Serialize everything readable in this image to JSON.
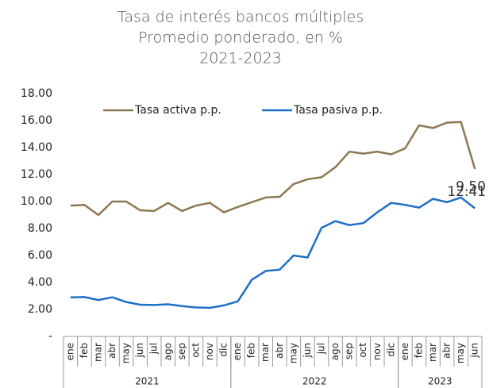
{
  "chart_data": {
    "type": "line",
    "title": [
      "Tasa de interés bancos múltiples",
      "Promedio ponderado, en %",
      "2021-2023"
    ],
    "groups": [
      {
        "name": "2021",
        "categories": [
          "ene",
          "feb",
          "mar",
          "abr",
          "may",
          "jun",
          "jul",
          "ago",
          "sep",
          "oct",
          "nov",
          "dic"
        ]
      },
      {
        "name": "2022",
        "categories": [
          "ene",
          "feb",
          "mar",
          "abr",
          "may",
          "jun",
          "jul",
          "ago",
          "sep",
          "oct",
          "nov",
          "dic"
        ]
      },
      {
        "name": "2023",
        "categories": [
          "ene",
          "feb",
          "mar",
          "abr",
          "may",
          "jun"
        ]
      }
    ],
    "series": [
      {
        "name": "Tasa activa p.p.",
        "color": "#8c7853",
        "values": [
          9.7,
          9.75,
          9.0,
          10.0,
          10.0,
          9.35,
          9.3,
          9.9,
          9.3,
          9.7,
          9.9,
          9.2,
          9.6,
          9.95,
          10.3,
          10.35,
          11.3,
          11.65,
          11.8,
          12.55,
          13.7,
          13.55,
          13.7,
          13.5,
          13.95,
          15.65,
          15.45,
          15.85,
          15.9,
          12.41
        ],
        "value_labels": [
          null,
          null,
          null,
          null,
          null,
          null,
          null,
          null,
          null,
          null,
          null,
          null,
          null,
          null,
          null,
          null,
          null,
          null,
          null,
          null,
          null,
          null,
          null,
          null,
          null,
          null,
          null,
          null,
          null,
          "12.41"
        ]
      },
      {
        "name": "Tasa pasiva p.p.",
        "color": "#1f6fc5",
        "values": [
          2.9,
          2.92,
          2.7,
          2.9,
          2.55,
          2.35,
          2.33,
          2.38,
          2.25,
          2.15,
          2.12,
          2.3,
          2.6,
          4.2,
          4.85,
          4.95,
          6.0,
          5.85,
          8.05,
          8.55,
          8.25,
          8.4,
          9.2,
          9.9,
          9.75,
          9.55,
          10.2,
          9.95,
          10.3,
          9.5
        ],
        "value_labels": [
          null,
          null,
          null,
          null,
          null,
          null,
          null,
          null,
          null,
          null,
          null,
          null,
          null,
          null,
          null,
          null,
          null,
          null,
          null,
          null,
          null,
          null,
          null,
          null,
          null,
          null,
          null,
          null,
          null,
          "9.50"
        ]
      }
    ],
    "ylim": [
      0,
      18
    ],
    "yticks": [
      {
        "value": 0,
        "label": "-"
      },
      {
        "value": 2,
        "label": "2.00"
      },
      {
        "value": 4,
        "label": "4.00"
      },
      {
        "value": 6,
        "label": "6.00"
      },
      {
        "value": 8,
        "label": "8.00"
      },
      {
        "value": 10,
        "label": "10.00"
      },
      {
        "value": 12,
        "label": "12.00"
      },
      {
        "value": 14,
        "label": "14.00"
      },
      {
        "value": 16,
        "label": "16.00"
      },
      {
        "value": 18,
        "label": "18.00"
      }
    ],
    "grid": false,
    "legend": "top"
  }
}
